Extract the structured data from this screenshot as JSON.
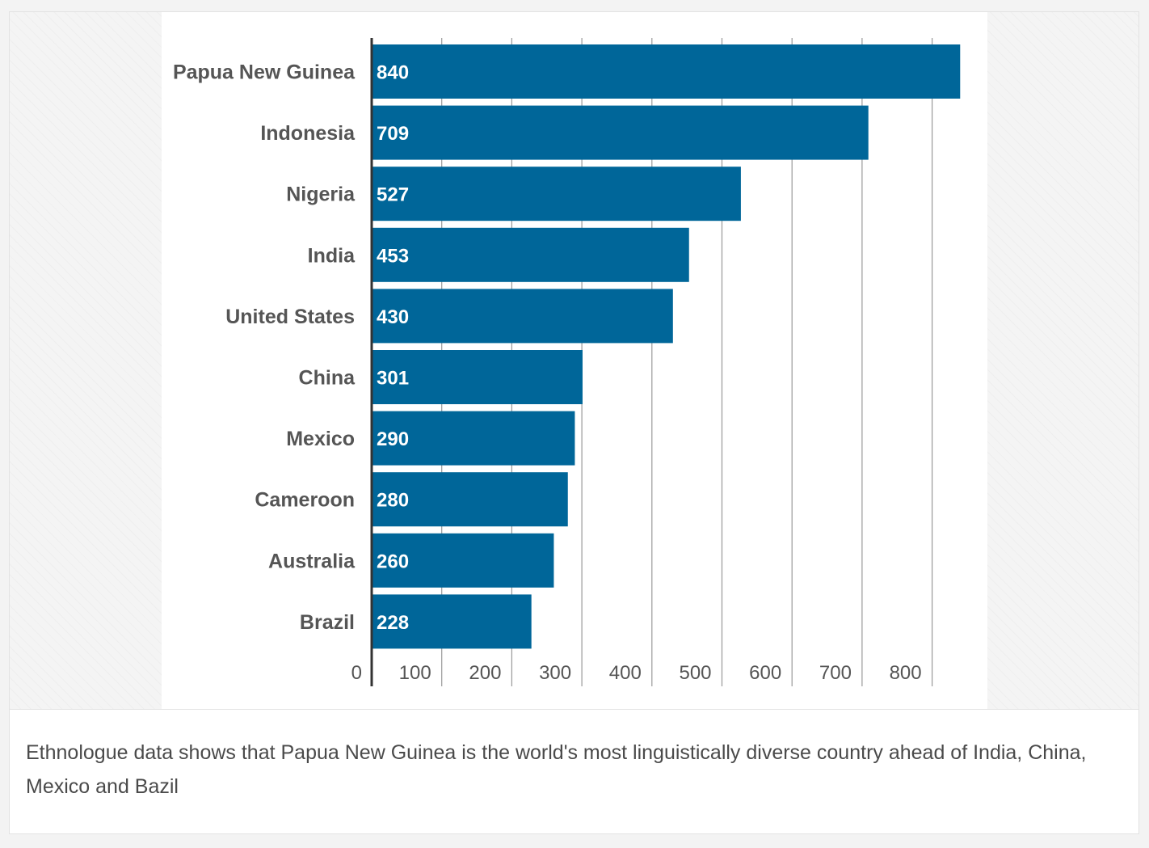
{
  "chart_data": {
    "type": "bar",
    "orientation": "horizontal",
    "categories": [
      "Papua New Guinea",
      "Indonesia",
      "Nigeria",
      "India",
      "United States",
      "China",
      "Mexico",
      "Cameroon",
      "Australia",
      "Brazil"
    ],
    "values": [
      840,
      709,
      527,
      453,
      430,
      301,
      290,
      280,
      260,
      228
    ],
    "xlim": [
      0,
      850
    ],
    "x_ticks": [
      0,
      100,
      200,
      300,
      400,
      500,
      600,
      700,
      800
    ],
    "grid": true,
    "bar_color": "#006699",
    "title": "",
    "xlabel": "",
    "ylabel": ""
  },
  "caption": "Ethnologue data shows that Papua New Guinea is the world's most linguistically diverse country ahead of India, China, Mexico and Bazil"
}
